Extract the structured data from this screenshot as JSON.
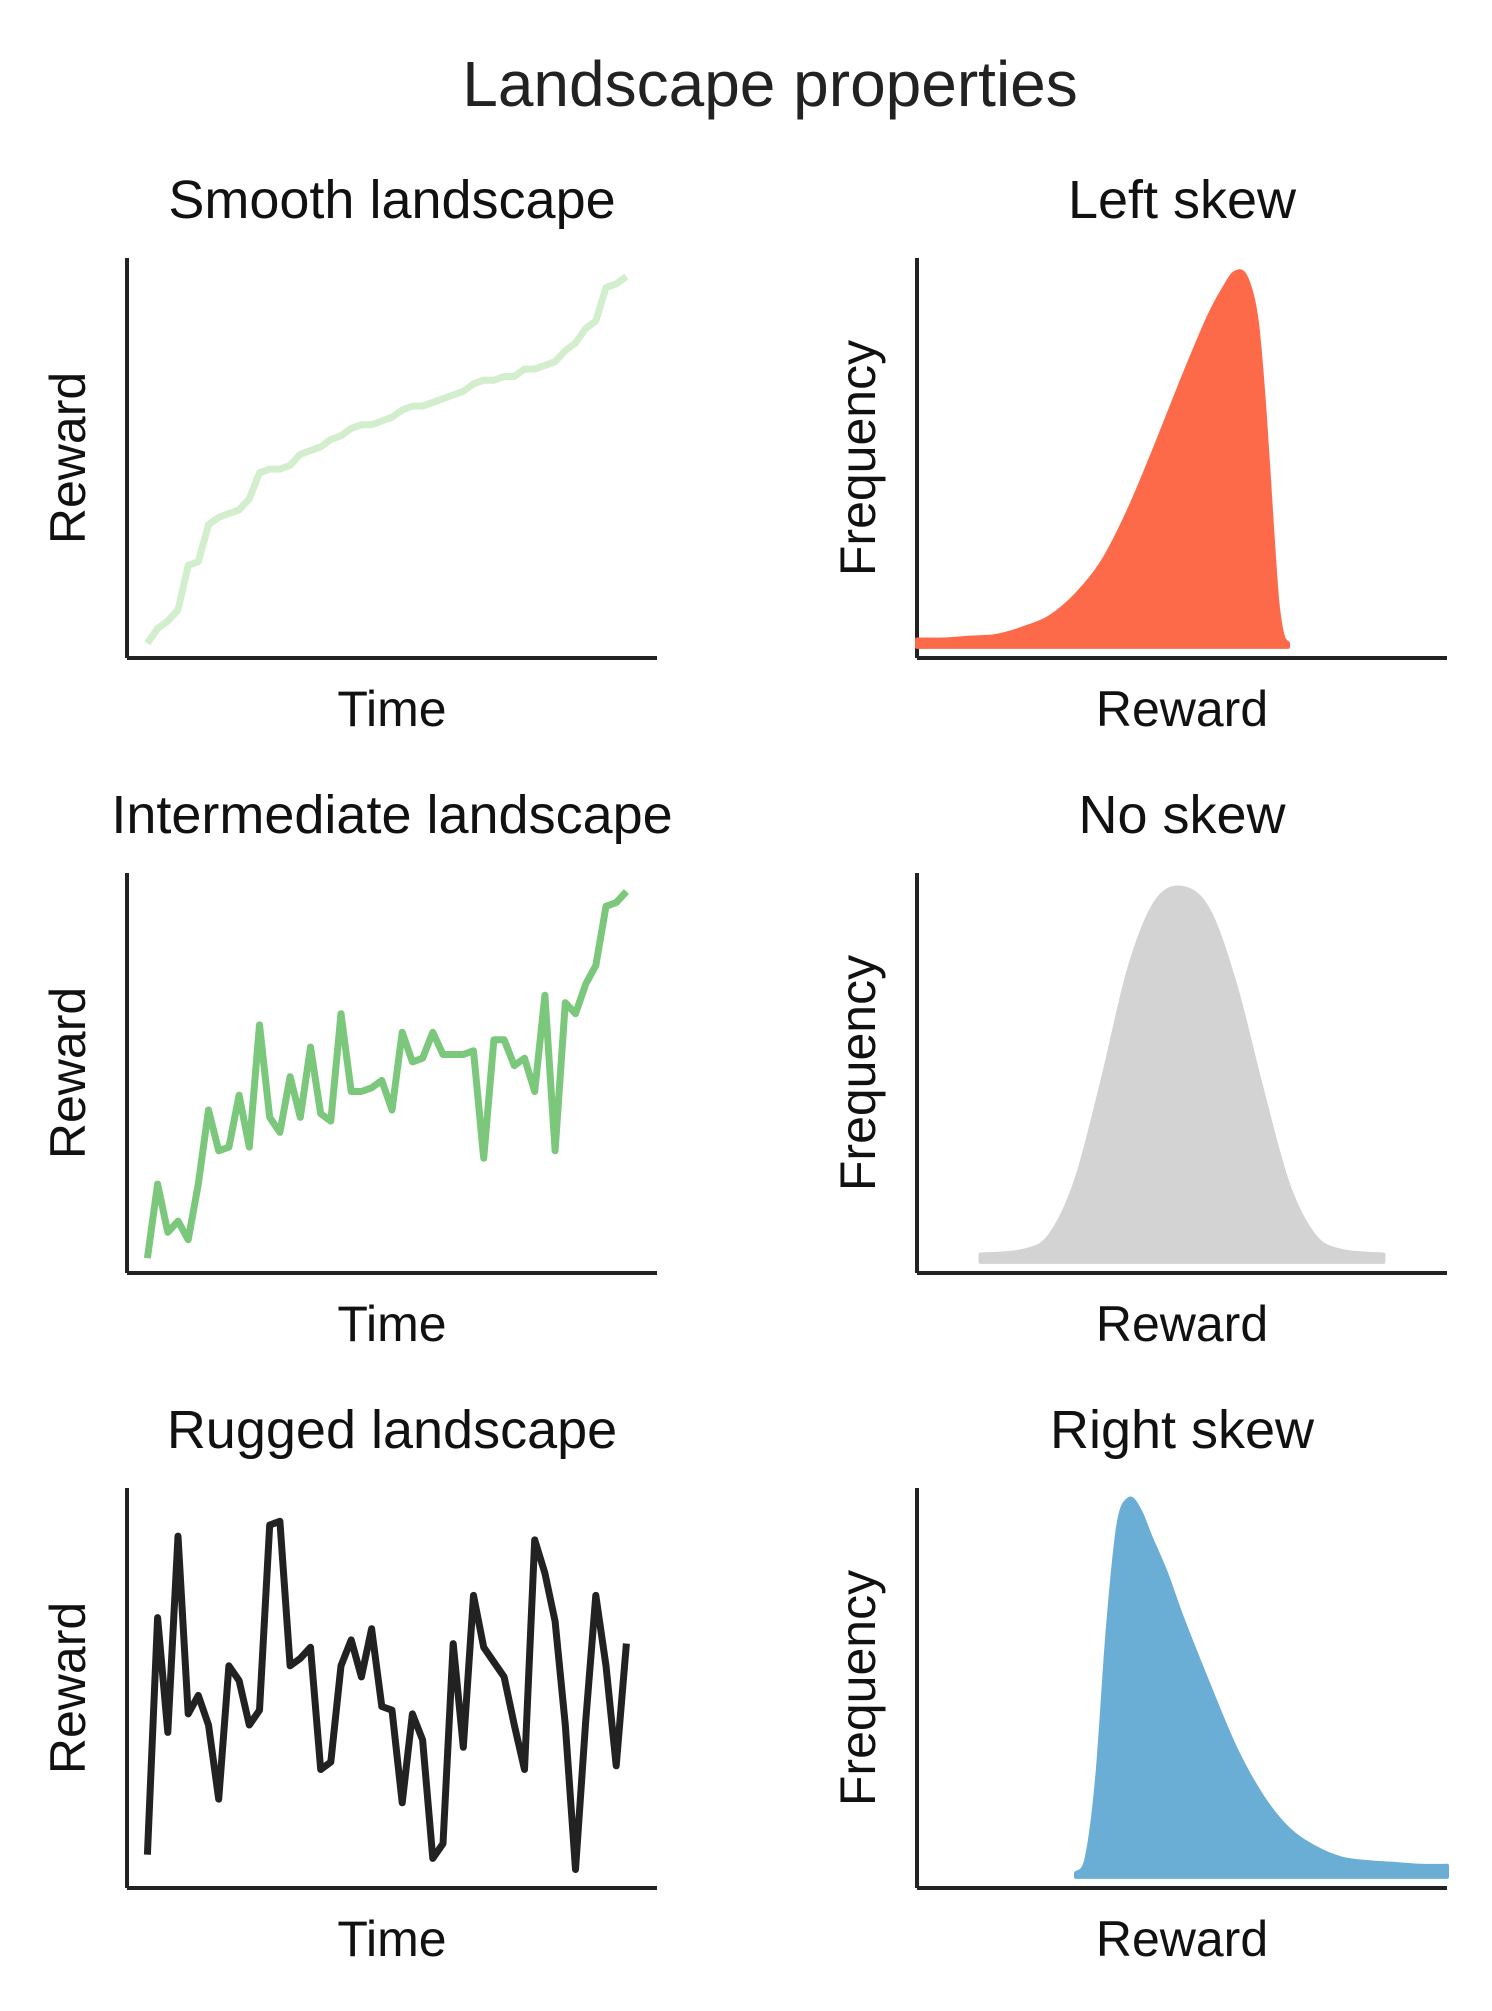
{
  "figure": {
    "title": "Landscape properties"
  },
  "colors": {
    "smooth": "#d3eecd",
    "intermediate": "#7bc87c",
    "rugged": "#222222",
    "left_skew": "#fc6a4a",
    "no_skew": "#d3d3d3",
    "right_skew": "#6aaed6",
    "axis": "#222222"
  },
  "chart_data": [
    {
      "id": "smooth",
      "type": "line",
      "title": "Smooth landscape",
      "xlabel": "Time",
      "ylabel": "Reward",
      "xlim": [
        -2,
        50
      ],
      "ylim": [
        0,
        1.08
      ],
      "x": [
        0,
        1,
        2,
        3,
        4,
        5,
        6,
        7,
        8,
        9,
        10,
        11,
        12,
        13,
        14,
        15,
        16,
        17,
        18,
        19,
        20,
        21,
        22,
        23,
        24,
        25,
        26,
        27,
        28,
        29,
        30,
        31,
        32,
        33,
        34,
        35,
        36,
        37,
        38,
        39,
        40,
        41,
        42,
        43,
        44,
        45,
        46,
        47
      ],
      "series": [
        {
          "name": "smooth",
          "values": [
            0.04,
            0.08,
            0.1,
            0.13,
            0.25,
            0.26,
            0.36,
            0.38,
            0.39,
            0.4,
            0.43,
            0.5,
            0.51,
            0.51,
            0.52,
            0.55,
            0.56,
            0.57,
            0.59,
            0.6,
            0.62,
            0.63,
            0.63,
            0.64,
            0.65,
            0.67,
            0.68,
            0.68,
            0.69,
            0.7,
            0.71,
            0.72,
            0.74,
            0.75,
            0.75,
            0.76,
            0.76,
            0.78,
            0.78,
            0.79,
            0.8,
            0.83,
            0.85,
            0.89,
            0.91,
            1.0,
            1.01,
            1.03
          ]
        }
      ]
    },
    {
      "id": "left-skew",
      "type": "area",
      "title": "Left skew",
      "xlabel": "Reward",
      "ylabel": "Frequency",
      "xlim": [
        0,
        1
      ],
      "ylim": [
        0,
        1.08
      ],
      "x": [
        0.0,
        0.05,
        0.1,
        0.15,
        0.2,
        0.25,
        0.3,
        0.35,
        0.4,
        0.45,
        0.5,
        0.55,
        0.58,
        0.6,
        0.62,
        0.64,
        0.655,
        0.67,
        0.68,
        0.69,
        0.7
      ],
      "series": [
        {
          "name": "left skew",
          "values": [
            0.05,
            0.05,
            0.055,
            0.06,
            0.08,
            0.11,
            0.17,
            0.26,
            0.4,
            0.57,
            0.75,
            0.92,
            1.0,
            1.04,
            1.03,
            0.92,
            0.68,
            0.35,
            0.15,
            0.06,
            0.04
          ]
        }
      ]
    },
    {
      "id": "intermediate",
      "type": "line",
      "title": "Intermediate landscape",
      "xlabel": "Time",
      "ylabel": "Reward",
      "xlim": [
        -2,
        50
      ],
      "ylim": [
        0,
        1.08
      ],
      "x": [
        0,
        1,
        2,
        3,
        4,
        5,
        6,
        7,
        8,
        9,
        10,
        11,
        12,
        13,
        14,
        15,
        16,
        17,
        18,
        19,
        20,
        21,
        22,
        23,
        24,
        25,
        26,
        27,
        28,
        29,
        30,
        31,
        32,
        33,
        34,
        35,
        36,
        37,
        38,
        39,
        40,
        41,
        42,
        43,
        44,
        45,
        46,
        47
      ],
      "series": [
        {
          "name": "intermediate",
          "values": [
            0.04,
            0.24,
            0.11,
            0.14,
            0.09,
            0.24,
            0.44,
            0.33,
            0.34,
            0.48,
            0.34,
            0.67,
            0.42,
            0.38,
            0.53,
            0.42,
            0.61,
            0.43,
            0.41,
            0.7,
            0.49,
            0.49,
            0.5,
            0.52,
            0.44,
            0.65,
            0.57,
            0.58,
            0.65,
            0.59,
            0.59,
            0.59,
            0.6,
            0.31,
            0.63,
            0.63,
            0.56,
            0.58,
            0.49,
            0.75,
            0.33,
            0.73,
            0.7,
            0.78,
            0.83,
            0.99,
            1.0,
            1.03
          ]
        }
      ]
    },
    {
      "id": "no-skew",
      "type": "area",
      "title": "No skew",
      "xlabel": "Reward",
      "ylabel": "Frequency",
      "xlim": [
        0,
        1
      ],
      "ylim": [
        0,
        1.08
      ],
      "x": [
        0.12,
        0.2,
        0.25,
        0.3,
        0.35,
        0.4,
        0.45,
        0.5,
        0.55,
        0.6,
        0.65,
        0.7,
        0.75,
        0.8,
        0.88
      ],
      "series": [
        {
          "name": "no skew",
          "values": [
            0.05,
            0.06,
            0.1,
            0.25,
            0.52,
            0.82,
            1.0,
            1.04,
            0.98,
            0.78,
            0.5,
            0.24,
            0.1,
            0.06,
            0.05
          ]
        }
      ]
    },
    {
      "id": "rugged",
      "type": "line",
      "title": "Rugged landscape",
      "xlabel": "Time",
      "ylabel": "Reward",
      "xlim": [
        -2,
        50
      ],
      "ylim": [
        0,
        1.08
      ],
      "x": [
        0,
        1,
        2,
        3,
        4,
        5,
        6,
        7,
        8,
        9,
        10,
        11,
        12,
        13,
        14,
        15,
        16,
        17,
        18,
        19,
        20,
        21,
        22,
        23,
        24,
        25,
        26,
        27,
        28,
        29,
        30,
        31,
        32,
        33,
        34,
        35,
        36,
        37,
        38,
        39,
        40,
        41,
        42,
        43,
        44,
        45,
        46,
        47
      ],
      "series": [
        {
          "name": "rugged",
          "values": [
            0.09,
            0.73,
            0.42,
            0.95,
            0.47,
            0.52,
            0.44,
            0.24,
            0.6,
            0.56,
            0.44,
            0.48,
            0.98,
            0.99,
            0.6,
            0.62,
            0.65,
            0.32,
            0.34,
            0.6,
            0.67,
            0.57,
            0.7,
            0.49,
            0.48,
            0.23,
            0.47,
            0.4,
            0.08,
            0.12,
            0.66,
            0.38,
            0.79,
            0.65,
            0.61,
            0.57,
            0.44,
            0.32,
            0.94,
            0.85,
            0.72,
            0.44,
            0.05,
            0.45,
            0.79,
            0.6,
            0.33,
            0.66
          ]
        }
      ]
    },
    {
      "id": "right-skew",
      "type": "area",
      "title": "Right skew",
      "xlabel": "Reward",
      "ylabel": "Frequency",
      "xlim": [
        0,
        1
      ],
      "ylim": [
        0,
        1.08
      ],
      "x": [
        0.3,
        0.32,
        0.34,
        0.36,
        0.38,
        0.4,
        0.42,
        0.44,
        0.47,
        0.5,
        0.55,
        0.6,
        0.65,
        0.7,
        0.75,
        0.8,
        0.85,
        0.9,
        0.95,
        1.0
      ],
      "series": [
        {
          "name": "right skew",
          "values": [
            0.04,
            0.08,
            0.3,
            0.7,
            0.98,
            1.05,
            1.02,
            0.95,
            0.85,
            0.73,
            0.55,
            0.38,
            0.25,
            0.16,
            0.11,
            0.08,
            0.07,
            0.065,
            0.06,
            0.06
          ]
        }
      ]
    }
  ]
}
